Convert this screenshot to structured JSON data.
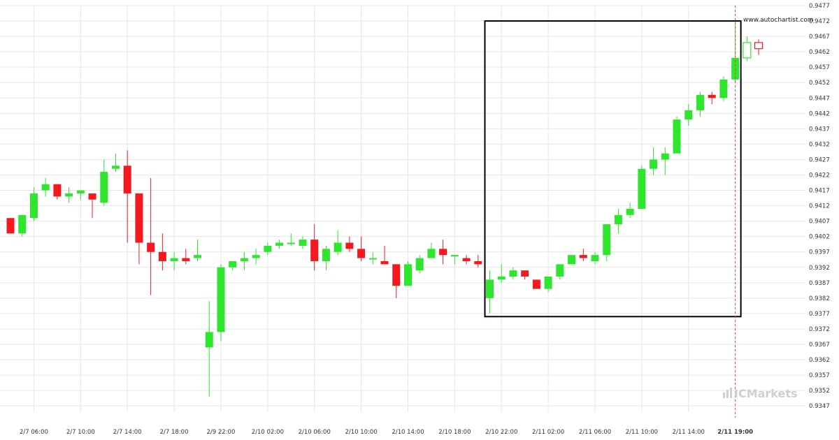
{
  "watermark": {
    "url": "www.autochartist.com",
    "brand": "ICMarkets",
    "brand_color": "#cfcfcf"
  },
  "colors": {
    "bull": "#2ee62e",
    "bear": "#f5181e",
    "pattern_box": "#000000",
    "grid": "#e6e6e6",
    "current_line": "#e04040"
  },
  "chart_data": {
    "type": "candlestick",
    "ylim": [
      0.9345,
      0.9477
    ],
    "y_ticks": [
      "0.9347",
      "0.9352",
      "0.9357",
      "0.9362",
      "0.9367",
      "0.9372",
      "0.9377",
      "0.9382",
      "0.9387",
      "0.9392",
      "0.9397",
      "0.9402",
      "0.9407",
      "0.9412",
      "0.9417",
      "0.9422",
      "0.9427",
      "0.9432",
      "0.9437",
      "0.9442",
      "0.9447",
      "0.9452",
      "0.9457",
      "0.9462",
      "0.9467",
      "0.9472",
      "0.9477"
    ],
    "x_ticks": [
      {
        "label": "2/7 06:00",
        "index": 2,
        "bold": false
      },
      {
        "label": "2/7 10:00",
        "index": 6,
        "bold": false
      },
      {
        "label": "2/7 14:00",
        "index": 10,
        "bold": false
      },
      {
        "label": "2/7 18:00",
        "index": 14,
        "bold": false
      },
      {
        "label": "2/9 22:00",
        "index": 18,
        "bold": false
      },
      {
        "label": "2/10 02:00",
        "index": 22,
        "bold": false
      },
      {
        "label": "2/10 06:00",
        "index": 26,
        "bold": false
      },
      {
        "label": "2/10 10:00",
        "index": 30,
        "bold": false
      },
      {
        "label": "2/10 14:00",
        "index": 34,
        "bold": false
      },
      {
        "label": "2/10 18:00",
        "index": 38,
        "bold": false
      },
      {
        "label": "2/10 22:00",
        "index": 42,
        "bold": false
      },
      {
        "label": "2/11 02:00",
        "index": 46,
        "bold": false
      },
      {
        "label": "2/11 06:00",
        "index": 50,
        "bold": false
      },
      {
        "label": "2/11 10:00",
        "index": 54,
        "bold": false
      },
      {
        "label": "2/11 14:00",
        "index": 58,
        "bold": false
      },
      {
        "label": "2/11 19:00",
        "index": 62,
        "bold": true
      }
    ],
    "candles": [
      {
        "o": 0.9408,
        "h": 0.9408,
        "l": 0.9403,
        "c": 0.9403
      },
      {
        "o": 0.9403,
        "h": 0.9409,
        "l": 0.9402,
        "c": 0.9409
      },
      {
        "o": 0.9408,
        "h": 0.9418,
        "l": 0.9407,
        "c": 0.9416
      },
      {
        "o": 0.9417,
        "h": 0.9421,
        "l": 0.9415,
        "c": 0.9419
      },
      {
        "o": 0.9419,
        "h": 0.9419,
        "l": 0.9414,
        "c": 0.9415
      },
      {
        "o": 0.9415,
        "h": 0.9418,
        "l": 0.9413,
        "c": 0.9416
      },
      {
        "o": 0.9416,
        "h": 0.9417,
        "l": 0.9414,
        "c": 0.9417
      },
      {
        "o": 0.9416,
        "h": 0.9416,
        "l": 0.9408,
        "c": 0.9414
      },
      {
        "o": 0.9413,
        "h": 0.9427,
        "l": 0.9412,
        "c": 0.9423
      },
      {
        "o": 0.9424,
        "h": 0.9429,
        "l": 0.9423,
        "c": 0.9425
      },
      {
        "o": 0.9425,
        "h": 0.943,
        "l": 0.94,
        "c": 0.9416
      },
      {
        "o": 0.9416,
        "h": 0.9416,
        "l": 0.9393,
        "c": 0.94
      },
      {
        "o": 0.94,
        "h": 0.9421,
        "l": 0.9383,
        "c": 0.9397
      },
      {
        "o": 0.9397,
        "h": 0.9403,
        "l": 0.9391,
        "c": 0.9394
      },
      {
        "o": 0.9394,
        "h": 0.9397,
        "l": 0.9391,
        "c": 0.9395
      },
      {
        "o": 0.9395,
        "h": 0.9398,
        "l": 0.9393,
        "c": 0.9394
      },
      {
        "o": 0.9395,
        "h": 0.9401,
        "l": 0.9394,
        "c": 0.9396
      },
      {
        "o": 0.9366,
        "h": 0.9381,
        "l": 0.935,
        "c": 0.9371
      },
      {
        "o": 0.9371,
        "h": 0.9393,
        "l": 0.9368,
        "c": 0.9392
      },
      {
        "o": 0.9392,
        "h": 0.9394,
        "l": 0.9391,
        "c": 0.9394
      },
      {
        "o": 0.9394,
        "h": 0.9397,
        "l": 0.9391,
        "c": 0.9395
      },
      {
        "o": 0.9395,
        "h": 0.9398,
        "l": 0.9393,
        "c": 0.9396
      },
      {
        "o": 0.9397,
        "h": 0.94,
        "l": 0.9396,
        "c": 0.9399
      },
      {
        "o": 0.9399,
        "h": 0.9401,
        "l": 0.9398,
        "c": 0.94
      },
      {
        "o": 0.94,
        "h": 0.9403,
        "l": 0.9399,
        "c": 0.94
      },
      {
        "o": 0.9399,
        "h": 0.9402,
        "l": 0.9398,
        "c": 0.9401
      },
      {
        "o": 0.9401,
        "h": 0.9406,
        "l": 0.9391,
        "c": 0.9394
      },
      {
        "o": 0.9394,
        "h": 0.9399,
        "l": 0.9391,
        "c": 0.9398
      },
      {
        "o": 0.9397,
        "h": 0.9404,
        "l": 0.9396,
        "c": 0.94
      },
      {
        "o": 0.94,
        "h": 0.9402,
        "l": 0.9397,
        "c": 0.9398
      },
      {
        "o": 0.9398,
        "h": 0.9402,
        "l": 0.9394,
        "c": 0.9395
      },
      {
        "o": 0.9395,
        "h": 0.9397,
        "l": 0.9393,
        "c": 0.9395
      },
      {
        "o": 0.9394,
        "h": 0.9399,
        "l": 0.9393,
        "c": 0.9393
      },
      {
        "o": 0.9393,
        "h": 0.9393,
        "l": 0.9382,
        "c": 0.9386
      },
      {
        "o": 0.9386,
        "h": 0.9394,
        "l": 0.9386,
        "c": 0.9393
      },
      {
        "o": 0.9391,
        "h": 0.9396,
        "l": 0.939,
        "c": 0.9395
      },
      {
        "o": 0.9395,
        "h": 0.94,
        "l": 0.9395,
        "c": 0.9398
      },
      {
        "o": 0.9398,
        "h": 0.9401,
        "l": 0.9393,
        "c": 0.9396
      },
      {
        "o": 0.9396,
        "h": 0.9396,
        "l": 0.9393,
        "c": 0.9396
      },
      {
        "o": 0.9395,
        "h": 0.9396,
        "l": 0.9393,
        "c": 0.9394
      },
      {
        "o": 0.9394,
        "h": 0.9396,
        "l": 0.9392,
        "c": 0.9393
      },
      {
        "o": 0.9382,
        "h": 0.9391,
        "l": 0.9377,
        "c": 0.9388
      },
      {
        "o": 0.9388,
        "h": 0.9393,
        "l": 0.9387,
        "c": 0.9389
      },
      {
        "o": 0.9389,
        "h": 0.9392,
        "l": 0.9388,
        "c": 0.9391
      },
      {
        "o": 0.9391,
        "h": 0.9391,
        "l": 0.9388,
        "c": 0.9389
      },
      {
        "o": 0.9388,
        "h": 0.9388,
        "l": 0.9385,
        "c": 0.9385
      },
      {
        "o": 0.9385,
        "h": 0.9389,
        "l": 0.9384,
        "c": 0.9389
      },
      {
        "o": 0.9389,
        "h": 0.9393,
        "l": 0.9388,
        "c": 0.9393
      },
      {
        "o": 0.9393,
        "h": 0.9396,
        "l": 0.9393,
        "c": 0.9396
      },
      {
        "o": 0.9396,
        "h": 0.9398,
        "l": 0.9394,
        "c": 0.9395
      },
      {
        "o": 0.9394,
        "h": 0.9397,
        "l": 0.9393,
        "c": 0.9396
      },
      {
        "o": 0.9396,
        "h": 0.9406,
        "l": 0.9394,
        "c": 0.9406
      },
      {
        "o": 0.9406,
        "h": 0.9411,
        "l": 0.9403,
        "c": 0.9409
      },
      {
        "o": 0.9409,
        "h": 0.9413,
        "l": 0.9408,
        "c": 0.9411
      },
      {
        "o": 0.9411,
        "h": 0.9425,
        "l": 0.9411,
        "c": 0.9424
      },
      {
        "o": 0.9424,
        "h": 0.9431,
        "l": 0.9422,
        "c": 0.9427
      },
      {
        "o": 0.9427,
        "h": 0.9431,
        "l": 0.9422,
        "c": 0.9429
      },
      {
        "o": 0.9429,
        "h": 0.9441,
        "l": 0.9429,
        "c": 0.944
      },
      {
        "o": 0.944,
        "h": 0.9445,
        "l": 0.9438,
        "c": 0.9443
      },
      {
        "o": 0.9443,
        "h": 0.9449,
        "l": 0.9441,
        "c": 0.9448
      },
      {
        "o": 0.9448,
        "h": 0.9449,
        "l": 0.9445,
        "c": 0.9447
      },
      {
        "o": 0.9447,
        "h": 0.9454,
        "l": 0.9446,
        "c": 0.9453
      },
      {
        "o": 0.9453,
        "h": 0.9472,
        "l": 0.9452,
        "c": 0.946
      },
      {
        "o": 0.946,
        "h": 0.9467,
        "l": 0.9459,
        "c": 0.9465,
        "hollow": true
      },
      {
        "o": 0.9465,
        "h": 0.9466,
        "l": 0.9461,
        "c": 0.9463,
        "hollow": true
      }
    ],
    "pattern_box": {
      "start_index": 41,
      "end_index": 62,
      "top": 0.9472,
      "bottom": 0.9376
    },
    "current_index": 62,
    "grid": true
  }
}
